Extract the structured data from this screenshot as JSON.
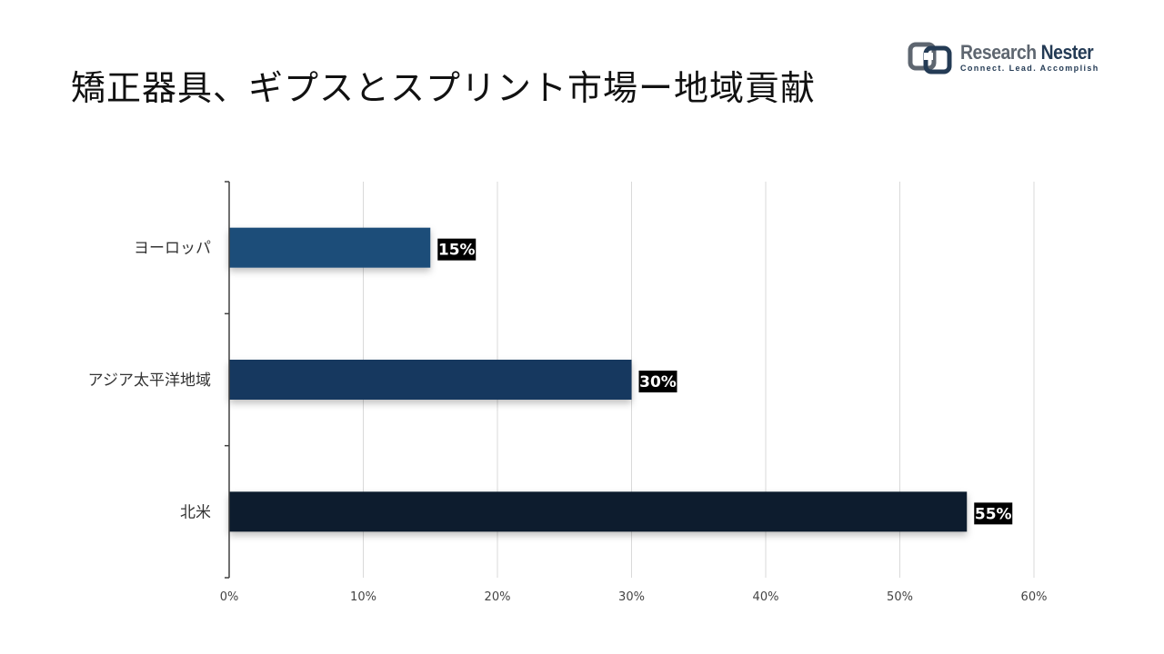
{
  "header": {
    "title": "矯正器具、ギプスとスプリント市場ー地域貢献"
  },
  "logo": {
    "name_part1": "Research",
    "name_part2": "Nester",
    "tagline": "Connect. Lead. Accomplish",
    "colors": {
      "gray": "#5e6670",
      "navy": "#243b55"
    }
  },
  "chart_data": {
    "type": "bar",
    "orientation": "horizontal",
    "categories": [
      "ヨーロッパ",
      "アジア太平洋地域",
      "北米"
    ],
    "values": [
      15,
      30,
      55
    ],
    "data_labels": [
      "15%",
      "30%",
      "55%"
    ],
    "bar_colors": [
      "#1f4e79",
      "#17375e",
      "#0f1e2d"
    ],
    "data_label_bg": "#000000",
    "xlim": [
      0,
      60
    ],
    "xticks": [
      0,
      10,
      20,
      30,
      40,
      50,
      60
    ],
    "xtick_labels": [
      "0%",
      "10%",
      "20%",
      "30%",
      "40%",
      "50%",
      "60%"
    ],
    "grid": "vertical",
    "legend": "none"
  }
}
